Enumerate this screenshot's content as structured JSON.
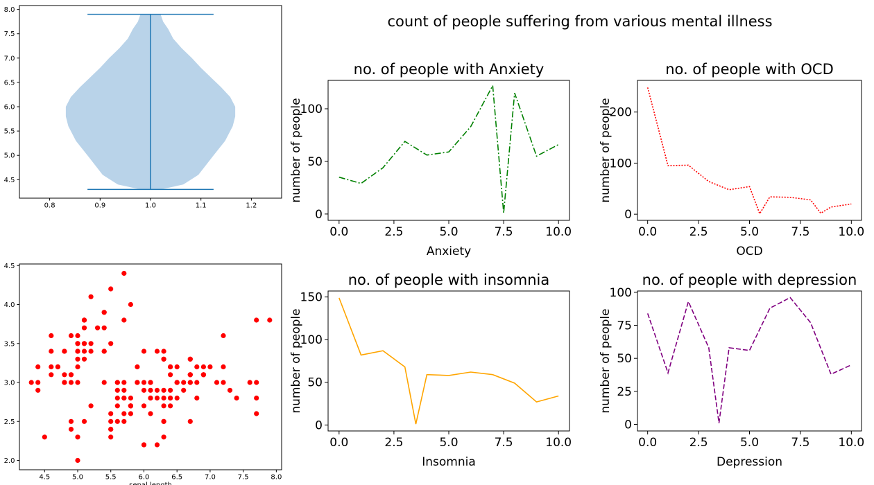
{
  "suptitle": "count of people suffering from various mental illness",
  "chart_data": [
    {
      "id": "violin",
      "type": "violin",
      "title": "",
      "xlabel": "",
      "ylabel": "",
      "xlim": [
        0.74,
        1.26
      ],
      "ylim": [
        4.12,
        8.08
      ],
      "xticks": [
        0.8,
        0.9,
        1.0,
        1.1,
        1.2
      ],
      "yticks": [
        4.5,
        5.0,
        5.5,
        6.0,
        6.5,
        7.0,
        7.5,
        8.0
      ],
      "position": 1.0,
      "min": 4.3,
      "max": 7.9,
      "cap_halfwidth": 0.125,
      "profile": [
        [
          4.3,
          0.02
        ],
        [
          4.4,
          0.065
        ],
        [
          4.6,
          0.095
        ],
        [
          4.8,
          0.11
        ],
        [
          5.0,
          0.125
        ],
        [
          5.3,
          0.148
        ],
        [
          5.6,
          0.163
        ],
        [
          5.8,
          0.168
        ],
        [
          6.0,
          0.168
        ],
        [
          6.2,
          0.158
        ],
        [
          6.4,
          0.14
        ],
        [
          6.6,
          0.12
        ],
        [
          6.8,
          0.1
        ],
        [
          7.0,
          0.082
        ],
        [
          7.2,
          0.062
        ],
        [
          7.4,
          0.045
        ],
        [
          7.6,
          0.035
        ],
        [
          7.75,
          0.025
        ],
        [
          7.9,
          0.02
        ]
      ],
      "body_color": "#b9d3e9",
      "line_color": "#1f77b4"
    },
    {
      "id": "scatter",
      "type": "scatter",
      "title": "",
      "xlabel": "sepal length",
      "ylabel": "",
      "xlim": [
        4.12,
        8.08
      ],
      "ylim": [
        1.88,
        4.52
      ],
      "xticks": [
        4.5,
        5.0,
        5.5,
        6.0,
        6.5,
        7.0,
        7.5,
        8.0
      ],
      "yticks": [
        2.0,
        2.5,
        3.0,
        3.5,
        4.0,
        4.5
      ],
      "color": "#ff0000",
      "points": [
        [
          5.1,
          3.5
        ],
        [
          4.9,
          3.0
        ],
        [
          4.7,
          3.2
        ],
        [
          4.6,
          3.1
        ],
        [
          5.0,
          3.6
        ],
        [
          5.4,
          3.9
        ],
        [
          4.6,
          3.4
        ],
        [
          5.0,
          3.4
        ],
        [
          4.4,
          2.9
        ],
        [
          4.9,
          3.1
        ],
        [
          5.4,
          3.7
        ],
        [
          4.8,
          3.4
        ],
        [
          4.8,
          3.0
        ],
        [
          4.3,
          3.0
        ],
        [
          5.8,
          4.0
        ],
        [
          5.7,
          4.4
        ],
        [
          5.4,
          3.9
        ],
        [
          5.1,
          3.5
        ],
        [
          5.7,
          3.8
        ],
        [
          5.1,
          3.8
        ],
        [
          5.4,
          3.4
        ],
        [
          5.1,
          3.7
        ],
        [
          4.6,
          3.6
        ],
        [
          5.1,
          3.3
        ],
        [
          4.8,
          3.4
        ],
        [
          5.0,
          3.0
        ],
        [
          5.0,
          3.4
        ],
        [
          5.2,
          3.5
        ],
        [
          5.2,
          3.4
        ],
        [
          4.7,
          3.2
        ],
        [
          4.8,
          3.1
        ],
        [
          5.4,
          3.4
        ],
        [
          5.2,
          4.1
        ],
        [
          5.5,
          4.2
        ],
        [
          4.9,
          3.1
        ],
        [
          5.0,
          3.2
        ],
        [
          5.5,
          3.5
        ],
        [
          4.9,
          3.6
        ],
        [
          4.4,
          3.0
        ],
        [
          5.1,
          3.4
        ],
        [
          5.0,
          3.5
        ],
        [
          4.5,
          2.3
        ],
        [
          4.4,
          3.2
        ],
        [
          5.0,
          3.5
        ],
        [
          5.1,
          3.8
        ],
        [
          4.8,
          3.0
        ],
        [
          5.1,
          3.8
        ],
        [
          4.6,
          3.2
        ],
        [
          5.3,
          3.7
        ],
        [
          5.0,
          3.3
        ],
        [
          7.0,
          3.2
        ],
        [
          6.4,
          3.2
        ],
        [
          6.9,
          3.1
        ],
        [
          5.5,
          2.3
        ],
        [
          6.5,
          2.8
        ],
        [
          5.7,
          2.8
        ],
        [
          6.3,
          3.3
        ],
        [
          4.9,
          2.4
        ],
        [
          6.6,
          2.9
        ],
        [
          5.2,
          2.7
        ],
        [
          5.0,
          2.0
        ],
        [
          5.9,
          3.0
        ],
        [
          6.0,
          2.2
        ],
        [
          6.1,
          2.9
        ],
        [
          5.6,
          2.9
        ],
        [
          6.7,
          3.1
        ],
        [
          5.6,
          3.0
        ],
        [
          5.8,
          2.7
        ],
        [
          6.2,
          2.2
        ],
        [
          5.6,
          2.5
        ],
        [
          5.9,
          3.2
        ],
        [
          6.1,
          2.8
        ],
        [
          6.3,
          2.5
        ],
        [
          6.1,
          2.8
        ],
        [
          6.4,
          2.9
        ],
        [
          6.6,
          3.0
        ],
        [
          6.8,
          2.8
        ],
        [
          6.7,
          3.0
        ],
        [
          6.0,
          2.9
        ],
        [
          5.7,
          2.6
        ],
        [
          5.5,
          2.4
        ],
        [
          5.5,
          2.4
        ],
        [
          5.8,
          2.7
        ],
        [
          6.0,
          2.7
        ],
        [
          5.4,
          3.0
        ],
        [
          6.0,
          3.4
        ],
        [
          6.7,
          3.1
        ],
        [
          6.3,
          2.3
        ],
        [
          5.6,
          3.0
        ],
        [
          5.5,
          2.5
        ],
        [
          5.5,
          2.6
        ],
        [
          6.1,
          3.0
        ],
        [
          5.8,
          2.6
        ],
        [
          5.0,
          2.3
        ],
        [
          5.6,
          2.7
        ],
        [
          5.7,
          3.0
        ],
        [
          5.7,
          2.9
        ],
        [
          6.2,
          2.9
        ],
        [
          5.1,
          2.5
        ],
        [
          5.7,
          2.8
        ],
        [
          6.3,
          3.3
        ],
        [
          5.8,
          2.7
        ],
        [
          7.1,
          3.0
        ],
        [
          6.3,
          2.9
        ],
        [
          6.5,
          3.0
        ],
        [
          7.6,
          3.0
        ],
        [
          4.9,
          2.5
        ],
        [
          7.3,
          2.9
        ],
        [
          6.7,
          2.5
        ],
        [
          7.2,
          3.6
        ],
        [
          6.5,
          3.2
        ],
        [
          6.4,
          2.7
        ],
        [
          6.8,
          3.0
        ],
        [
          5.7,
          2.5
        ],
        [
          5.8,
          2.8
        ],
        [
          6.4,
          3.2
        ],
        [
          6.5,
          3.0
        ],
        [
          7.7,
          3.8
        ],
        [
          7.7,
          2.6
        ],
        [
          6.0,
          2.2
        ],
        [
          6.9,
          3.2
        ],
        [
          5.6,
          2.8
        ],
        [
          7.7,
          2.8
        ],
        [
          6.3,
          2.7
        ],
        [
          6.7,
          3.3
        ],
        [
          7.2,
          3.2
        ],
        [
          6.2,
          2.8
        ],
        [
          6.1,
          3.0
        ],
        [
          6.4,
          2.8
        ],
        [
          7.2,
          3.0
        ],
        [
          7.4,
          2.8
        ],
        [
          7.9,
          3.8
        ],
        [
          6.4,
          2.8
        ],
        [
          6.3,
          2.8
        ],
        [
          6.1,
          2.6
        ],
        [
          7.7,
          3.0
        ],
        [
          6.3,
          3.4
        ],
        [
          6.4,
          3.1
        ],
        [
          6.0,
          3.0
        ],
        [
          6.9,
          3.1
        ],
        [
          6.7,
          3.1
        ],
        [
          6.9,
          3.1
        ],
        [
          5.8,
          2.7
        ],
        [
          6.8,
          3.2
        ],
        [
          6.7,
          3.3
        ],
        [
          6.7,
          3.0
        ],
        [
          6.3,
          2.5
        ],
        [
          6.5,
          3.0
        ],
        [
          6.2,
          3.4
        ],
        [
          5.9,
          3.0
        ]
      ]
    },
    {
      "id": "anxiety",
      "type": "line",
      "title": "no. of people with Anxiety",
      "xlabel": "Anxiety",
      "ylabel": "number of people",
      "xlim": [
        -0.5,
        10.5
      ],
      "ylim": [
        -6,
        127
      ],
      "xticks": [
        "0.0",
        "2.5",
        "5.0",
        "7.5",
        "10.0"
      ],
      "yticks": [
        0,
        50,
        100
      ],
      "line_style": "dashdot",
      "color": "#008000",
      "series": [
        {
          "x": [
            0,
            1,
            2,
            3,
            4,
            5,
            6,
            7,
            7.5,
            8,
            9,
            10
          ],
          "y": [
            35,
            29,
            44,
            69,
            56,
            59,
            83,
            122,
            1,
            115,
            55,
            66
          ]
        }
      ]
    },
    {
      "id": "ocd",
      "type": "line",
      "title": "no. of people with OCD",
      "xlabel": "OCD",
      "ylabel": "number of people",
      "xlim": [
        -0.5,
        10.5
      ],
      "ylim": [
        -12,
        262
      ],
      "xticks": [
        "0.0",
        "2.5",
        "5.0",
        "7.5",
        "10.0"
      ],
      "yticks": [
        0,
        100,
        200
      ],
      "line_style": "dotted",
      "color": "#ff0000",
      "series": [
        {
          "x": [
            0,
            1,
            2,
            3,
            4,
            5,
            5.5,
            6,
            7,
            8,
            8.5,
            9,
            10
          ],
          "y": [
            248,
            95,
            96,
            64,
            48,
            54,
            1,
            34,
            33,
            28,
            2,
            14,
            20
          ]
        }
      ]
    },
    {
      "id": "insomnia",
      "type": "line",
      "title": "no. of people with insomnia",
      "xlabel": "Insomnia",
      "ylabel": "number of people",
      "xlim": [
        -0.5,
        10.5
      ],
      "ylim": [
        -7,
        157
      ],
      "xticks": [
        "0.0",
        "2.5",
        "5.0",
        "7.5",
        "10.0"
      ],
      "yticks": [
        0,
        50,
        100,
        150
      ],
      "line_style": "solid",
      "color": "#ffa500",
      "series": [
        {
          "x": [
            0,
            1,
            2,
            3,
            3.5,
            4,
            5,
            6,
            7,
            8,
            9,
            10
          ],
          "y": [
            149,
            82,
            87,
            68,
            1,
            59,
            58,
            62,
            59,
            49,
            27,
            34
          ]
        }
      ]
    },
    {
      "id": "depression",
      "type": "line",
      "title": "no. of people with depression",
      "xlabel": "Depression",
      "ylabel": "number of people",
      "xlim": [
        -0.5,
        10.5
      ],
      "ylim": [
        -5,
        101
      ],
      "xticks": [
        "0.0",
        "2.5",
        "5.0",
        "7.5",
        "10.0"
      ],
      "yticks": [
        0,
        25,
        50,
        75,
        100
      ],
      "line_style": "dashed",
      "color": "#800080",
      "series": [
        {
          "x": [
            0,
            1,
            2,
            3,
            3.5,
            4,
            5,
            6,
            7,
            8,
            9,
            10
          ],
          "y": [
            84,
            39,
            93,
            58,
            1,
            58,
            56,
            88,
            96,
            77,
            38,
            45
          ]
        }
      ]
    }
  ]
}
